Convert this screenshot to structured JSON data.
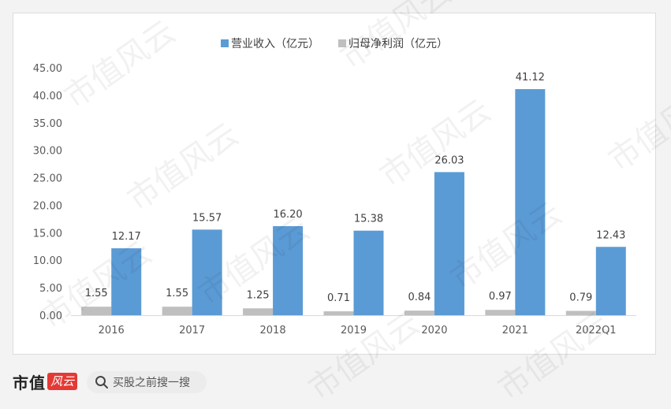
{
  "chart_data": {
    "type": "bar",
    "categories": [
      "2016",
      "2017",
      "2018",
      "2019",
      "2020",
      "2021",
      "2022Q1"
    ],
    "series": [
      {
        "name": "归母净利润（亿元）",
        "values": [
          1.55,
          1.55,
          1.25,
          0.71,
          0.84,
          0.97,
          0.79
        ],
        "color": "#bfbfbf"
      },
      {
        "name": "营业收入（亿元）",
        "values": [
          12.17,
          15.57,
          16.2,
          15.38,
          26.03,
          41.12,
          12.43
        ],
        "color": "#5b9bd5"
      }
    ],
    "value_labels": {
      "net_profit": [
        "1.55",
        "1.55",
        "1.25",
        "0.71",
        "0.84",
        "0.97",
        "0.79"
      ],
      "revenue": [
        "12.17",
        "15.57",
        "16.20",
        "15.38",
        "26.03",
        "41.12",
        "12.43"
      ]
    },
    "legend": [
      "营业收入（亿元）",
      "归母净利润（亿元）"
    ],
    "legend_position": "top",
    "yticks": [
      "0.00",
      "5.00",
      "10.00",
      "15.00",
      "20.00",
      "25.00",
      "30.00",
      "35.00",
      "40.00",
      "45.00"
    ],
    "ylim": [
      0,
      45
    ],
    "grid": false
  },
  "watermark": "市值风云",
  "footer": {
    "brand": "市值",
    "brand_logo": "风云",
    "search_placeholder": "买股之前搜一搜"
  },
  "colors": {
    "revenue": "#5b9bd5",
    "net_profit": "#bfbfbf"
  },
  "icons": {
    "search": "search-icon"
  }
}
